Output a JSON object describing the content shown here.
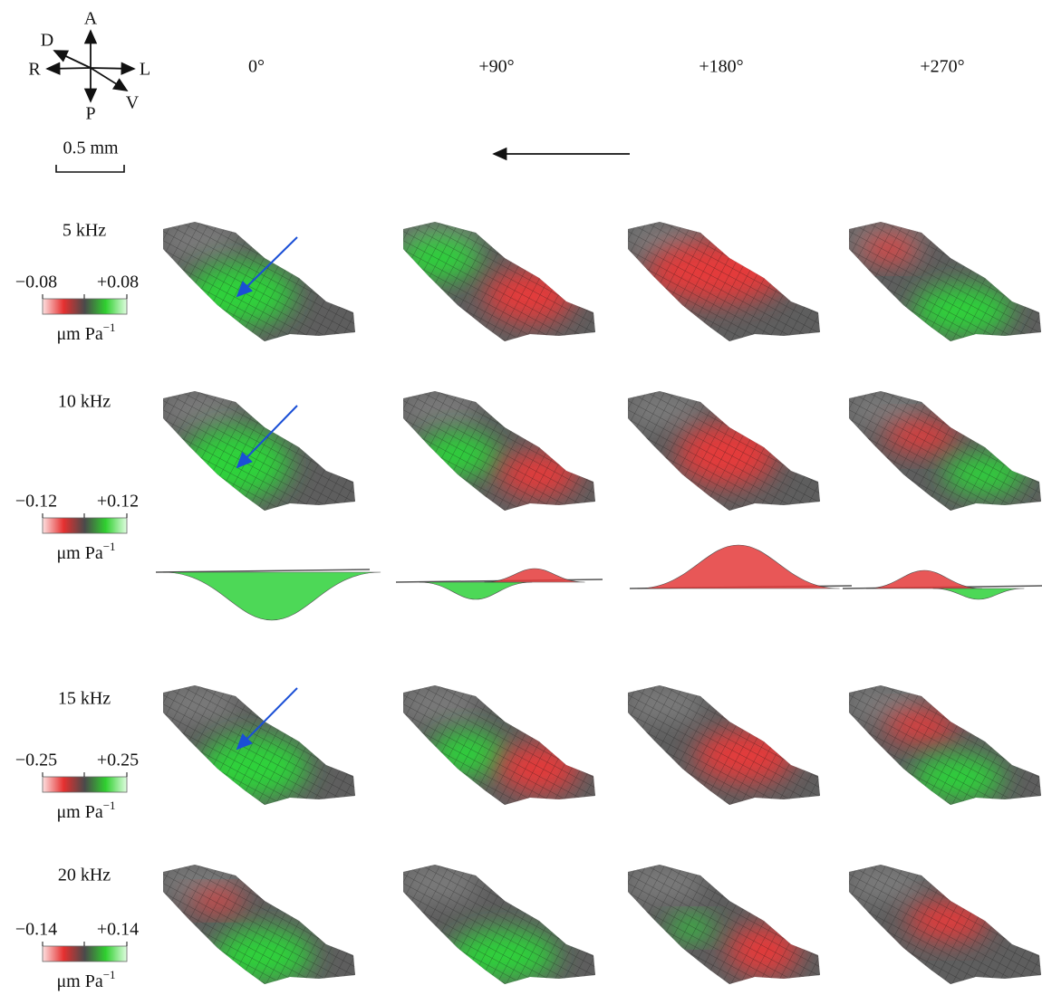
{
  "compass": {
    "anterior": "A",
    "posterior": "P",
    "right": "R",
    "left": "L",
    "dorsal": "D",
    "ventral": "V"
  },
  "scale_bar": "0.5 mm",
  "phases": [
    "0°",
    "+90°",
    "+180°",
    "+270°"
  ],
  "rows": [
    {
      "frequency": "5 kHz",
      "min": "−0.08",
      "max": "+0.08",
      "unit": "μm Pa",
      "unit_exponent": "−1"
    },
    {
      "frequency": "10 kHz",
      "min": "−0.12",
      "max": "+0.12",
      "unit": "μm Pa",
      "unit_exponent": "−1"
    },
    {
      "frequency": "15 kHz",
      "min": "−0.25",
      "max": "+0.25",
      "unit": "μm Pa",
      "unit_exponent": "−1"
    },
    {
      "frequency": "20 kHz",
      "min": "−0.14",
      "max": "+0.14",
      "unit": "μm Pa",
      "unit_exponent": "−1"
    }
  ]
}
